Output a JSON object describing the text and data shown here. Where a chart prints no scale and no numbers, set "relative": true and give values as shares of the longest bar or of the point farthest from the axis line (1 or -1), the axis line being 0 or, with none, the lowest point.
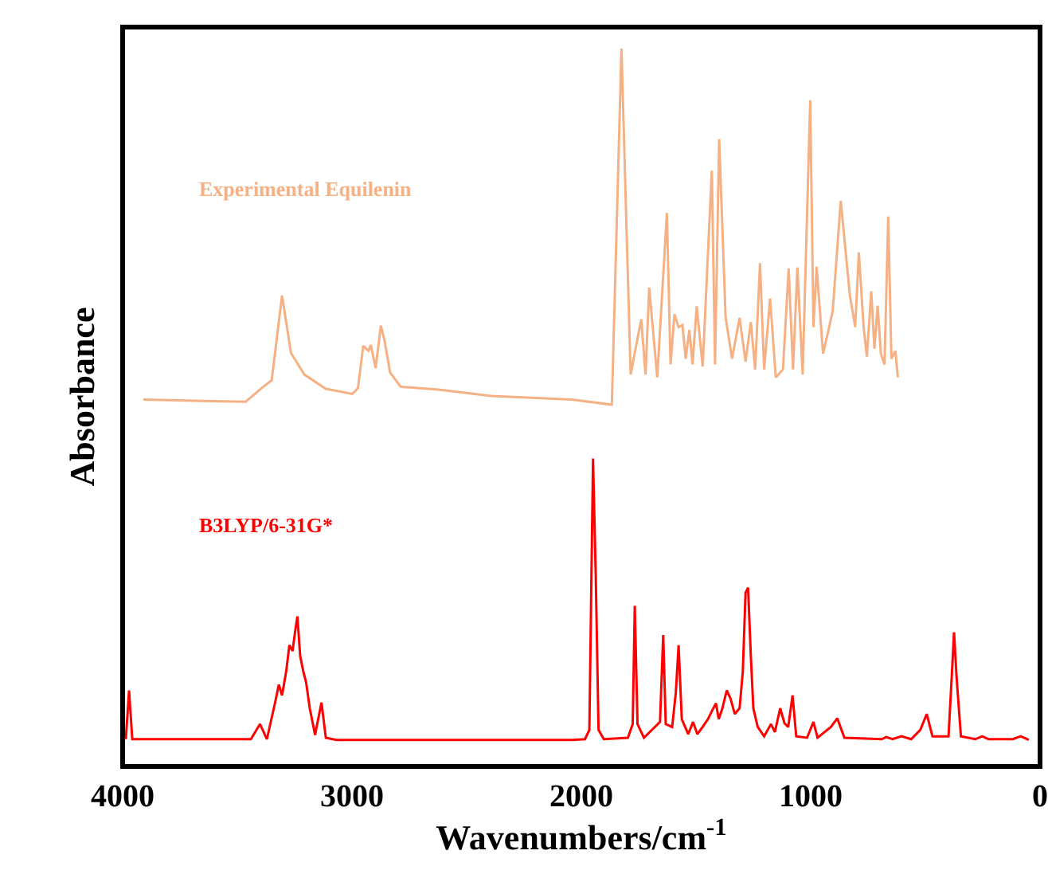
{
  "chart_data": {
    "type": "line",
    "xlabel": "Wavenumbers/cm$^{-1}$",
    "ylabel": "Absorbance",
    "relative": true,
    "xlim": [
      4000,
      0
    ],
    "xticks": [
      4000,
      3000,
      2000,
      1000,
      0
    ],
    "grid": false,
    "legend": false,
    "marker": "none",
    "line_style": "solid",
    "series": [
      {
        "name": "Experimental Equilenin",
        "color": "#f5b183",
        "x": [
          3910,
          3464,
          3394,
          3350,
          3305,
          3266,
          3208,
          3114,
          2998,
          2974,
          2951,
          2928,
          2918,
          2897,
          2874,
          2858,
          2834,
          2788,
          2624,
          2392,
          2042,
          1867,
          1825,
          1785,
          1739,
          1720,
          1704,
          1669,
          1627,
          1611,
          1594,
          1576,
          1559,
          1545,
          1529,
          1515,
          1497,
          1471,
          1431,
          1417,
          1399,
          1371,
          1343,
          1310,
          1284,
          1261,
          1242,
          1221,
          1203,
          1177,
          1152,
          1121,
          1096,
          1077,
          1058,
          1035,
          1002,
          988,
          974,
          946,
          904,
          869,
          829,
          806,
          790,
          769,
          755,
          736,
          722,
          708,
          694,
          678,
          662,
          648,
          631,
          620
        ],
        "values": [
          0.511,
          0.508,
          0.527,
          0.538,
          0.656,
          0.576,
          0.546,
          0.526,
          0.519,
          0.527,
          0.586,
          0.579,
          0.587,
          0.555,
          0.614,
          0.593,
          0.549,
          0.529,
          0.525,
          0.516,
          0.511,
          0.504,
          1.0,
          0.546,
          0.623,
          0.546,
          0.667,
          0.542,
          0.771,
          0.56,
          0.63,
          0.612,
          0.615,
          0.568,
          0.608,
          0.56,
          0.641,
          0.557,
          0.83,
          0.56,
          0.874,
          0.626,
          0.568,
          0.625,
          0.564,
          0.619,
          0.553,
          0.701,
          0.553,
          0.652,
          0.542,
          0.553,
          0.694,
          0.553,
          0.695,
          0.546,
          0.928,
          0.612,
          0.696,
          0.575,
          0.634,
          0.788,
          0.656,
          0.612,
          0.716,
          0.612,
          0.571,
          0.662,
          0.582,
          0.642,
          0.575,
          0.56,
          0.766,
          0.568,
          0.579,
          0.542
        ]
      },
      {
        "name": "B3LYP/6-31G*",
        "color": "#ff0000",
        "x": [
          3986,
          3972,
          3958,
          3441,
          3401,
          3371,
          3336,
          3319,
          3305,
          3287,
          3273,
          3259,
          3247,
          3238,
          3226,
          3212,
          3200,
          3184,
          3161,
          3133,
          3114,
          3068,
          2042,
          1984,
          1965,
          1956,
          1949,
          1937,
          1925,
          1902,
          1797,
          1776,
          1767,
          1755,
          1727,
          1657,
          1643,
          1632,
          1604,
          1588,
          1576,
          1562,
          1534,
          1513,
          1494,
          1471,
          1448,
          1431,
          1413,
          1401,
          1385,
          1366,
          1350,
          1331,
          1310,
          1296,
          1284,
          1273,
          1261,
          1250,
          1231,
          1203,
          1173,
          1156,
          1133,
          1114,
          1098,
          1079,
          1063,
          1016,
          988,
          970,
          912,
          884,
          853,
          690,
          671,
          643,
          604,
          562,
          522,
          494,
          469,
          399,
          385,
          375,
          364,
          345,
          282,
          252,
          224,
          119,
          84,
          49
        ],
        "values": [
          0.038,
          0.106,
          0.038,
          0.038,
          0.059,
          0.038,
          0.088,
          0.114,
          0.099,
          0.132,
          0.169,
          0.161,
          0.19,
          0.209,
          0.154,
          0.132,
          0.117,
          0.081,
          0.044,
          0.089,
          0.04,
          0.037,
          0.037,
          0.038,
          0.051,
          0.264,
          0.429,
          0.264,
          0.051,
          0.038,
          0.04,
          0.059,
          0.224,
          0.059,
          0.04,
          0.062,
          0.183,
          0.059,
          0.055,
          0.103,
          0.169,
          0.066,
          0.045,
          0.062,
          0.045,
          0.055,
          0.066,
          0.077,
          0.088,
          0.066,
          0.081,
          0.106,
          0.095,
          0.073,
          0.081,
          0.132,
          0.242,
          0.249,
          0.154,
          0.081,
          0.055,
          0.042,
          0.059,
          0.048,
          0.081,
          0.06,
          0.055,
          0.099,
          0.042,
          0.04,
          0.062,
          0.04,
          0.055,
          0.067,
          0.04,
          0.038,
          0.041,
          0.038,
          0.042,
          0.038,
          0.051,
          0.073,
          0.042,
          0.042,
          0.125,
          0.187,
          0.125,
          0.042,
          0.038,
          0.042,
          0.038,
          0.038,
          0.042,
          0.037
        ]
      }
    ]
  }
}
